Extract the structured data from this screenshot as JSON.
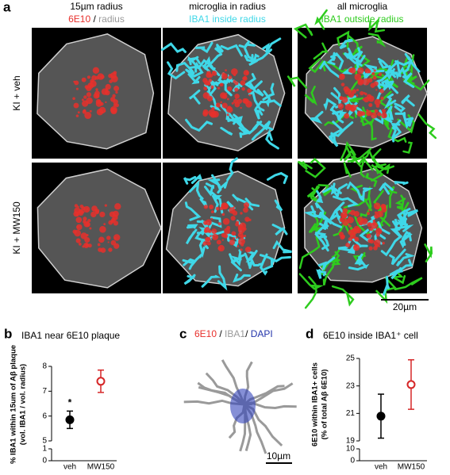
{
  "panel_a": {
    "label": "a",
    "columns": [
      {
        "title": "15µm radius",
        "legend": [
          {
            "text": "6E10",
            "color": "#e8302c"
          },
          {
            "text": " / ",
            "color": "#000000"
          },
          {
            "text": "radius",
            "color": "#9a9a9a"
          }
        ]
      },
      {
        "title": "microglia in radius",
        "legend": [
          {
            "text": "IBA1 inside radius",
            "color": "#3fd8e8"
          }
        ]
      },
      {
        "title": "all microglia",
        "legend": [
          {
            "text": "IBA1 outside radius",
            "color": "#2ecc1e"
          }
        ]
      }
    ],
    "rows": [
      "KI + veh",
      "KI + MW150"
    ],
    "scale_bar": "20µm"
  },
  "panel_c": {
    "label": "c",
    "legend": [
      {
        "text": "6E10",
        "color": "#e8302c"
      },
      {
        "text": " / ",
        "color": "#000000"
      },
      {
        "text": "IBA1",
        "color": "#9a9a9a"
      },
      {
        "text": "/ ",
        "color": "#000000"
      },
      {
        "text": "DAPI",
        "color": "#2233aa"
      }
    ],
    "scale_bar": "10µm"
  },
  "chart_data": [
    {
      "type": "dot",
      "panel_label": "b",
      "title": "IBA1 near 6E10 plaque",
      "ylabel": [
        "% IBA1 within 15um of Aβ plaque",
        "(vol. IBA1 / vol. radius)"
      ],
      "categories": [
        "veh",
        "MW150"
      ],
      "values": [
        5.85,
        7.4
      ],
      "errors": [
        0.35,
        0.45
      ],
      "colors": [
        "#000000",
        "#d62728"
      ],
      "filled": [
        true,
        false
      ],
      "ylim": [
        5,
        8
      ],
      "yticks": [
        5,
        6,
        7,
        8
      ],
      "break_ylim": [
        0,
        1
      ],
      "break_yticks": [
        0,
        1
      ],
      "annotations": [
        {
          "text": "*",
          "category": 0
        }
      ]
    },
    {
      "type": "dot",
      "panel_label": "d",
      "title": "6E10 inside IBA1⁺ cell",
      "ylabel": [
        "6E10 within IBA1+ cells",
        "(% of total Aβ 6E10)"
      ],
      "categories": [
        "veh",
        "MW150"
      ],
      "values": [
        20.8,
        23.1
      ],
      "errors": [
        1.6,
        1.8
      ],
      "colors": [
        "#000000",
        "#d62728"
      ],
      "filled": [
        true,
        false
      ],
      "ylim": [
        19,
        25
      ],
      "yticks": [
        19,
        21,
        23,
        25
      ],
      "break_ylim": [
        0,
        10
      ],
      "break_yticks": [
        0,
        10
      ],
      "annotations": []
    }
  ]
}
